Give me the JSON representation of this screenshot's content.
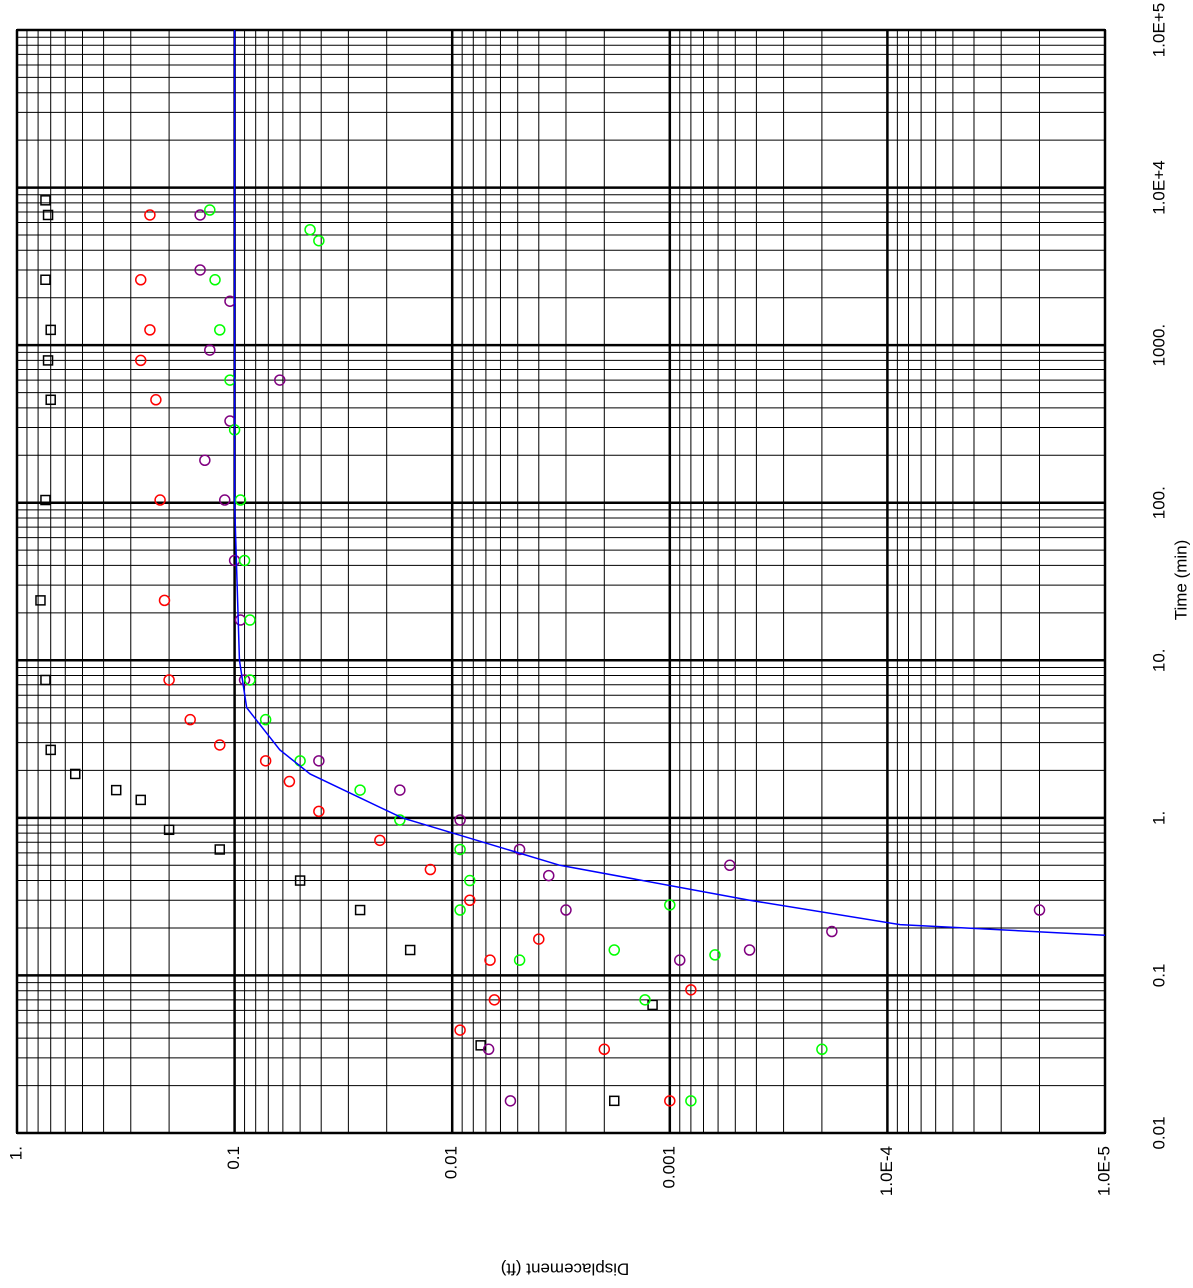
{
  "chart_data": {
    "type": "scatter",
    "x_label": "Time (min)",
    "y_label": "Displacement (ft)",
    "log_x": true,
    "log_y": true,
    "grid": true,
    "xlim": [
      0.01,
      100000
    ],
    "ylim": [
      1e-05,
      1
    ],
    "xticks": [
      0.01,
      0.1,
      {
        "value": 1,
        "label": "1."
      },
      {
        "value": 10,
        "label": "10."
      },
      {
        "value": 100,
        "label": "100."
      },
      {
        "value": 1000,
        "label": "1000."
      },
      {
        "value": 10000,
        "label": "1.0E+4"
      },
      {
        "value": 100000,
        "label": "1.0E+5"
      }
    ],
    "yticks": [
      {
        "value": 1,
        "label": "1."
      },
      0.1,
      0.01,
      0.001,
      {
        "value": 0.0001,
        "label": "1.0E-4"
      },
      {
        "value": 1e-05,
        "label": "1.0E-5"
      }
    ],
    "series": [
      {
        "color": "#000000",
        "marker": "square",
        "x": [
          8300,
          6700,
          2600,
          1250,
          800,
          450,
          104,
          24,
          7.5,
          2.7,
          1.9,
          1.5,
          1.3,
          0.84,
          0.63,
          0.4,
          0.26,
          0.145,
          0.036,
          0.016,
          0.065
        ],
        "values": [
          0.74,
          0.72,
          0.74,
          0.7,
          0.72,
          0.7,
          0.74,
          0.78,
          0.74,
          0.7,
          0.54,
          0.35,
          0.27,
          0.2,
          0.117,
          0.05,
          0.0265,
          0.0156,
          0.0074,
          0.0018,
          0.0012
        ]
      },
      {
        "color": "#ff0000",
        "marker": "circle",
        "x": [
          6700,
          2600,
          1250,
          800,
          450,
          104,
          24,
          7.5,
          4.2,
          2.9,
          2.3,
          1.7,
          1.1,
          0.72,
          0.47,
          0.3,
          0.125,
          0.07,
          0.045,
          0.034,
          0.016,
          0.081,
          0.17
        ],
        "values": [
          0.245,
          0.27,
          0.245,
          0.27,
          0.23,
          0.22,
          0.21,
          0.2,
          0.16,
          0.117,
          0.072,
          0.056,
          0.041,
          0.0215,
          0.0126,
          0.0083,
          0.0067,
          0.0064,
          0.0092,
          0.002,
          0.001,
          0.0008,
          0.004
        ]
      },
      {
        "color": "#800080",
        "marker": "circle",
        "x": [
          6700,
          3000,
          1900,
          930,
          600,
          330,
          186,
          104,
          43,
          18,
          7.5,
          2.3,
          1.5,
          0.97,
          0.63,
          0.43,
          0.5,
          0.26,
          0.19,
          0.26,
          0.145,
          0.125,
          0.016,
          0.034
        ],
        "values": [
          0.144,
          0.144,
          0.105,
          0.13,
          0.062,
          0.105,
          0.137,
          0.111,
          0.1,
          0.094,
          0.09,
          0.041,
          0.0174,
          0.0092,
          0.0049,
          0.0036,
          0.00053,
          0.003,
          0.00018,
          2e-05,
          0.00043,
          0.0009,
          0.0054,
          0.0068
        ]
      },
      {
        "color": "#00ff00",
        "marker": "circle",
        "x": [
          7200,
          5400,
          4600,
          2600,
          1250,
          600,
          290,
          104,
          43,
          18,
          7.5,
          4.2,
          2.3,
          1.5,
          0.97,
          0.63,
          0.4,
          0.26,
          0.125,
          0.145,
          0.07,
          0.034,
          0.016,
          0.135,
          0.28
        ],
        "values": [
          0.13,
          0.045,
          0.041,
          0.123,
          0.117,
          0.105,
          0.1,
          0.094,
          0.09,
          0.085,
          0.085,
          0.072,
          0.05,
          0.0265,
          0.0174,
          0.0092,
          0.0083,
          0.0092,
          0.0049,
          0.0018,
          0.0013,
          0.0002,
          0.0008,
          0.00062,
          0.001
        ]
      },
      {
        "color": "#0000ff",
        "marker": "line",
        "x": [
          100000,
          1000,
          100,
          10,
          5,
          2.7,
          1.9,
          1,
          0.5,
          0.3,
          0.21,
          0.18
        ],
        "values": [
          0.1,
          0.1,
          0.1,
          0.095,
          0.088,
          0.062,
          0.045,
          0.017,
          0.0032,
          0.00043,
          8.75e-05,
          1e-05
        ]
      }
    ]
  }
}
